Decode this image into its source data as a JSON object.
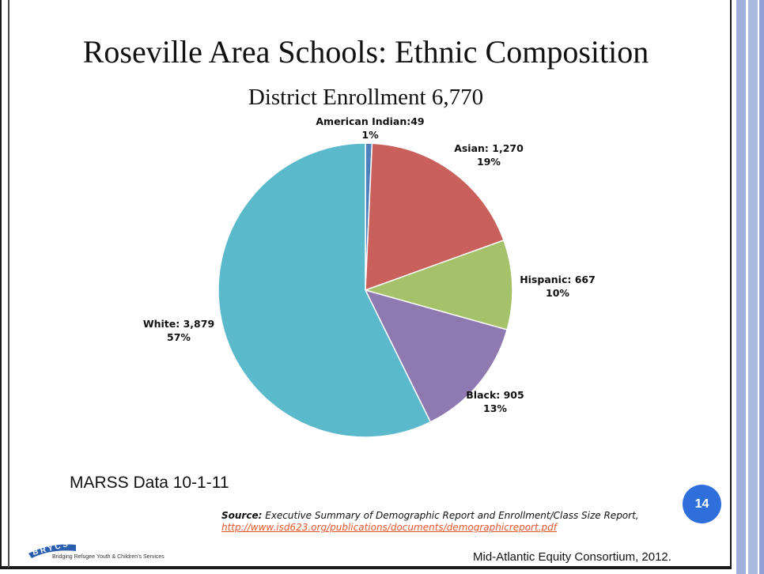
{
  "colors": {
    "american_indian": "#4f81bd",
    "asian": "#c9605c",
    "hispanic": "#a5c26b",
    "black": "#8e79b0",
    "white": "#5bb9cc",
    "page_badge": "#2e6fdc",
    "link": "#e4572e"
  },
  "chart_data": {
    "type": "pie",
    "title": "Roseville Area Schools: Ethnic Composition",
    "subtitle": "District Enrollment 6,770",
    "slices": [
      {
        "name": "American Indian",
        "value": 49,
        "label": "American Indian:49",
        "percent": "1%",
        "color": "#4f81bd"
      },
      {
        "name": "Asian",
        "value": 1270,
        "label": "Asian: 1,270",
        "percent": "19%",
        "color": "#c9605c"
      },
      {
        "name": "Hispanic",
        "value": 667,
        "label": "Hispanic: 667",
        "percent": "10%",
        "color": "#a5c26b"
      },
      {
        "name": "Black",
        "value": 905,
        "label": "Black: 905",
        "percent": "13%",
        "color": "#8e79b0"
      },
      {
        "name": "White",
        "value": 3879,
        "label": "White: 3,879",
        "percent": "57%",
        "color": "#5bb9cc"
      }
    ]
  },
  "marss_note": "MARSS Data 10-1-11",
  "page_number": "14",
  "source": {
    "label": "Source:",
    "text": "Executive Summary of Demographic Report and Enrollment/Class Size Report,",
    "link": "http://www.isd623.org/publications/documents/demographicreport.pdf"
  },
  "logo": {
    "lettering": "BRYCS",
    "caption": "Bridging Refugee Youth & Children's Services"
  },
  "footer_credit": "Mid-Atlantic Equity Consortium, 2012."
}
